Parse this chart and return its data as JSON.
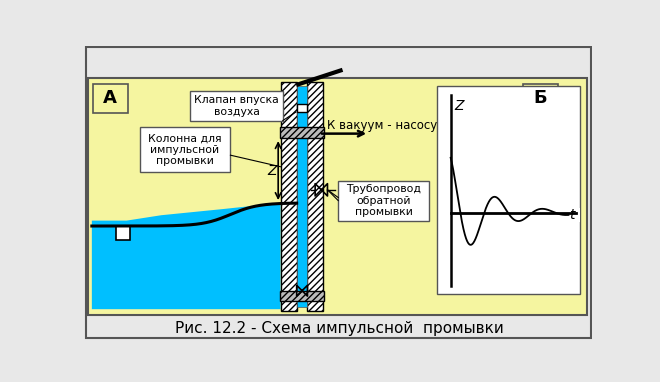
{
  "bg_color": "#F5F5A0",
  "outer_bg": "#E8E8E8",
  "border_color": "#555555",
  "title": "Рис. 12.2 - Схема импульсной  промывки",
  "title_fontsize": 11,
  "label_A": "А",
  "label_B": "Б",
  "label_Z": "Z",
  "label_t": "t",
  "text_valve": "Клапан впуска\nвоздуха",
  "text_column": "Колонна для\nимпульсной\nпромывки",
  "text_vacuum": "К вакуум - насосу",
  "text_pipe": "Трубопровод\nобратной\nпромывки",
  "water_color": "#00BFFF",
  "line_color": "#000000",
  "white": "#FFFFFF",
  "gray_hatch": "#AAAAAA"
}
